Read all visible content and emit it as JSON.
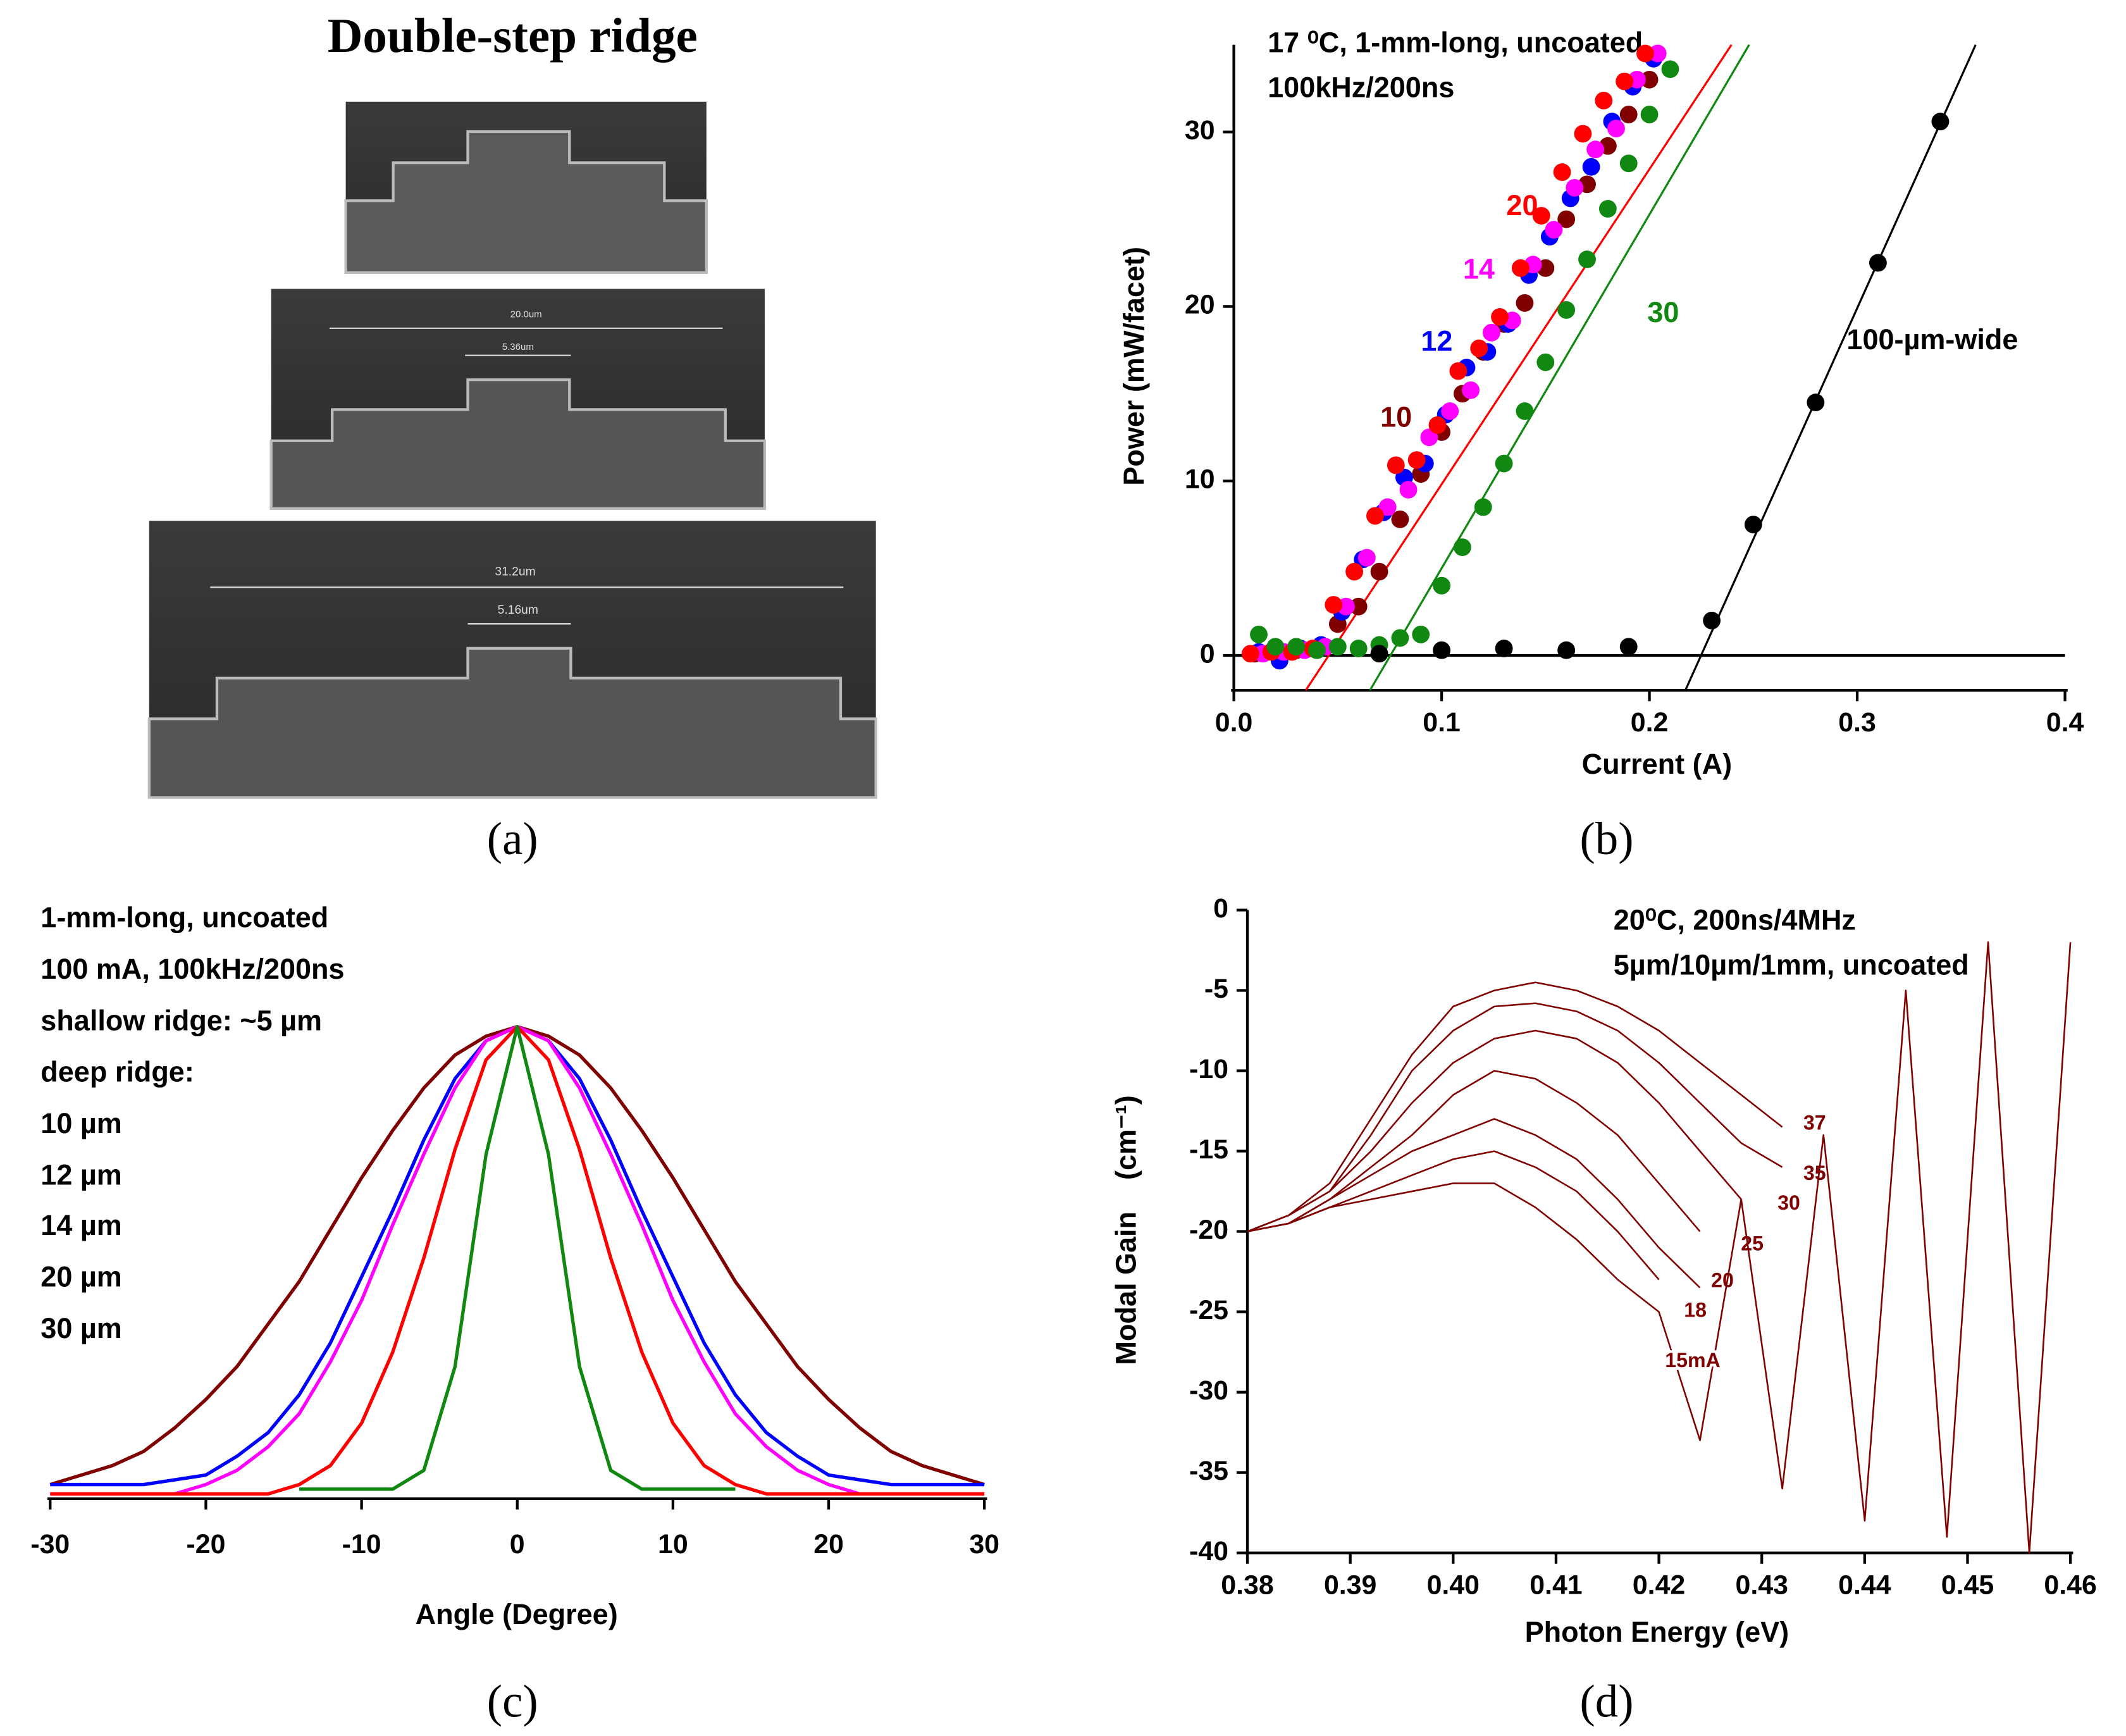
{
  "panel_a": {
    "title": "Double-step ridge",
    "measurements": [
      "20.0um",
      "5.36um",
      "31.2um",
      "5.16um"
    ]
  },
  "captions": [
    "(a)",
    "(b)",
    "(c)",
    "(d)"
  ],
  "chart_data": [
    {
      "type": "scatter",
      "xlabel": "Current (A)",
      "ylabel": "Power (mW/facet)",
      "annotations": [
        "17 ⁰C, 1-mm-long, uncoated,",
        "100kHz/200ns"
      ],
      "xlim": [
        0,
        0.4
      ],
      "ylim": [
        -2,
        35
      ],
      "xticks": [
        {
          "value": 0,
          "label": "0.0"
        },
        0.1,
        0.2,
        0.3,
        0.4
      ],
      "yticks": [
        0,
        10,
        20,
        30
      ],
      "series": [
        {
          "name": "10",
          "color": "#800000",
          "x": [
            0.01,
            0.02,
            0.03,
            0.04,
            0.05,
            0.06,
            0.07,
            0.08,
            0.09,
            0.1,
            0.11,
            0.12,
            0.13,
            0.14,
            0.15,
            0.16,
            0.17,
            0.18,
            0.19,
            0.2
          ],
          "values": [
            0.1,
            0.2,
            0.3,
            0.4,
            1.8,
            2.8,
            4.8,
            7.8,
            10.4,
            12.8,
            15,
            17.4,
            19,
            20.2,
            22.2,
            25,
            27,
            29.2,
            31,
            33
          ]
        },
        {
          "name": "12",
          "color": "#0000ff",
          "x": [
            0.012,
            0.022,
            0.032,
            0.042,
            0.052,
            0.062,
            0.072,
            0.082,
            0.092,
            0.102,
            0.112,
            0.122,
            0.132,
            0.142,
            0.152,
            0.162,
            0.172,
            0.182,
            0.192,
            0.202
          ],
          "values": [
            0.2,
            -0.3,
            0.4,
            0.6,
            2.5,
            5.5,
            8.2,
            10.2,
            11,
            13.8,
            16.5,
            17.4,
            19,
            21.8,
            24,
            26.2,
            28,
            30.6,
            32.6,
            34.2
          ]
        },
        {
          "name": "14",
          "color": "#ff00ff",
          "x": [
            0.014,
            0.024,
            0.034,
            0.044,
            0.054,
            0.064,
            0.074,
            0.084,
            0.094,
            0.104,
            0.114,
            0.124,
            0.134,
            0.144,
            0.154,
            0.164,
            0.174,
            0.184,
            0.194,
            0.204
          ],
          "values": [
            0.1,
            0.2,
            0.3,
            0.5,
            2.8,
            5.6,
            8.5,
            9.5,
            12.5,
            14,
            15.2,
            18.5,
            19.2,
            22.4,
            24.4,
            26.8,
            29,
            30.2,
            33,
            34.5
          ]
        },
        {
          "name": "20",
          "color": "#ff0000",
          "x": [
            0.008,
            0.018,
            0.028,
            0.038,
            0.048,
            0.058,
            0.068,
            0.078,
            0.088,
            0.098,
            0.108,
            0.118,
            0.128,
            0.138,
            0.148,
            0.158,
            0.168,
            0.178,
            0.188,
            0.198
          ],
          "values": [
            0.1,
            0.2,
            0.2,
            0.4,
            2.9,
            4.8,
            8,
            10.9,
            11.2,
            13.2,
            16.3,
            17.6,
            19.4,
            22.2,
            25.2,
            27.7,
            29.9,
            31.8,
            32.9,
            34.5
          ]
        },
        {
          "name": "30",
          "color": "#118811",
          "x": [
            0.012,
            0.02,
            0.03,
            0.04,
            0.05,
            0.06,
            0.07,
            0.08,
            0.09,
            0.1,
            0.11,
            0.12,
            0.13,
            0.14,
            0.15,
            0.16,
            0.17,
            0.18,
            0.19,
            0.2,
            0.21
          ],
          "values": [
            1.2,
            0.5,
            0.5,
            0.3,
            0.5,
            0.4,
            0.6,
            1,
            1.2,
            4,
            6.2,
            8.5,
            11,
            14,
            16.8,
            19.8,
            22.7,
            25.6,
            28.2,
            31,
            33.6
          ]
        },
        {
          "name": "100-µm-wide",
          "color": "#000000",
          "x": [
            0.07,
            0.1,
            0.13,
            0.16,
            0.19,
            0.23,
            0.25,
            0.28,
            0.31,
            0.34
          ],
          "values": [
            0.1,
            0.3,
            0.4,
            0.3,
            0.5,
            2,
            7.5,
            14.5,
            22.5,
            30.6
          ]
        }
      ],
      "fits": [
        {
          "color": "#ff0000",
          "x": [
            0.0346,
            0.2395
          ],
          "values": [
            -2,
            35
          ]
        },
        {
          "color": "#118811",
          "x": [
            0.0655,
            0.248
          ],
          "values": [
            -2,
            35
          ]
        },
        {
          "color": "#000000",
          "x": [
            0.2173,
            0.357
          ],
          "values": [
            -2,
            35
          ]
        }
      ]
    },
    {
      "type": "line",
      "xlabel": "Angle (Degree)",
      "annotations": [
        "1-mm-long, uncoated",
        "100 mA, 100kHz/200ns",
        "shallow ridge: ~5 µm",
        "deep ridge:"
      ],
      "xlim": [
        -30,
        30
      ],
      "ylim": [
        0,
        1
      ],
      "xticks": [
        -30,
        -20,
        -10,
        0,
        10,
        20,
        30
      ],
      "x": [
        -30,
        -28,
        -26,
        -24,
        -22,
        -20,
        -18,
        -16,
        -14,
        -12,
        -10,
        -8,
        -6,
        -4,
        -2,
        0,
        2,
        4,
        6,
        8,
        10,
        12,
        14,
        16,
        18,
        20,
        22,
        24,
        26,
        28,
        30
      ],
      "series": [
        {
          "name": "10 µm",
          "color": "#800000",
          "values": [
            0.03,
            0.05,
            0.07,
            0.1,
            0.15,
            0.21,
            0.28,
            0.37,
            0.46,
            0.57,
            0.68,
            0.78,
            0.87,
            0.94,
            0.98,
            1,
            0.98,
            0.94,
            0.87,
            0.78,
            0.68,
            0.57,
            0.46,
            0.37,
            0.28,
            0.21,
            0.15,
            0.1,
            0.07,
            0.05,
            0.03
          ]
        },
        {
          "name": "12 µm",
          "color": "#0000ff",
          "values": [
            0.03,
            0.03,
            0.03,
            0.03,
            0.04,
            0.05,
            0.09,
            0.14,
            0.22,
            0.33,
            0.47,
            0.61,
            0.76,
            0.89,
            0.97,
            1,
            0.97,
            0.89,
            0.76,
            0.61,
            0.47,
            0.33,
            0.22,
            0.14,
            0.09,
            0.05,
            0.04,
            0.03,
            0.03,
            0.03,
            0.03
          ]
        },
        {
          "name": "14 µm",
          "color": "#ff00ff",
          "values": [
            0.01,
            0.01,
            0.01,
            0.01,
            0.01,
            0.03,
            0.06,
            0.11,
            0.18,
            0.29,
            0.42,
            0.58,
            0.73,
            0.87,
            0.97,
            1,
            0.97,
            0.87,
            0.73,
            0.58,
            0.42,
            0.29,
            0.18,
            0.11,
            0.06,
            0.03,
            0.01,
            0.01,
            0.01,
            0.01,
            0.01
          ]
        },
        {
          "name": "20 µm",
          "color": "#ff0000",
          "values": [
            0.01,
            0.01,
            0.01,
            0.01,
            0.01,
            0.01,
            0.01,
            0.01,
            0.03,
            0.07,
            0.16,
            0.31,
            0.51,
            0.74,
            0.93,
            1,
            0.93,
            0.74,
            0.51,
            0.31,
            0.16,
            0.07,
            0.03,
            0.01,
            0.01,
            0.01,
            0.01,
            0.01,
            0.01,
            0.01,
            0.01
          ]
        },
        {
          "name": "30 µm",
          "color": "#118811",
          "values": [
            null,
            null,
            null,
            null,
            null,
            null,
            null,
            null,
            0.02,
            0.02,
            0.02,
            0.02,
            0.06,
            0.28,
            0.73,
            1,
            0.73,
            0.28,
            0.06,
            0.02,
            0.02,
            0.02,
            0.02,
            null,
            null,
            null,
            null,
            null,
            null,
            null,
            null
          ]
        }
      ]
    },
    {
      "type": "line",
      "xlabel": "Photon Energy (eV)",
      "ylabel": "Modal Gain    (cm⁻¹)",
      "annotations": [
        "20⁰C, 200ns/4MHz",
        "5µm/10µm/1mm, uncoated"
      ],
      "xlim": [
        0.38,
        0.46
      ],
      "ylim": [
        -40,
        0
      ],
      "xticks": [
        0.38,
        0.39,
        {
          "value": 0.4,
          "label": "0.40"
        },
        0.41,
        0.42,
        0.43,
        0.44,
        0.45,
        0.46
      ],
      "yticks": [
        -40,
        -35,
        -30,
        -25,
        -20,
        -15,
        -10,
        -5,
        0
      ],
      "x": [
        0.38,
        0.384,
        0.388,
        0.392,
        0.396,
        0.4,
        0.404,
        0.408,
        0.412,
        0.416,
        0.42,
        0.424,
        0.428,
        0.432,
        0.436,
        0.44,
        0.444,
        0.448,
        0.452,
        0.456,
        0.46
      ],
      "series": [
        {
          "name": "37",
          "color": "#800000",
          "values": [
            -20,
            -19,
            -17,
            -13,
            -9,
            -6,
            -5,
            -4.5,
            -5,
            -6,
            -7.5,
            -9.5,
            -11.5,
            -13.5,
            null,
            null,
            null,
            null,
            null,
            null,
            null
          ]
        },
        {
          "name": "35",
          "color": "#800000",
          "values": [
            -20,
            -19,
            -17.5,
            -14,
            -10,
            -7.5,
            -6,
            -5.8,
            -6.3,
            -7.5,
            -9.5,
            -12,
            -14.5,
            -16,
            null,
            null,
            null,
            null,
            null,
            null,
            null
          ]
        },
        {
          "name": "30",
          "color": "#800000",
          "values": [
            -20,
            -19,
            -17.5,
            -15,
            -12,
            -9.5,
            -8,
            -7.5,
            -8,
            -9.5,
            -12,
            -15,
            -18,
            null,
            null,
            null,
            null,
            null,
            null,
            null,
            null
          ]
        },
        {
          "name": "25",
          "color": "#800000",
          "values": [
            -20,
            -19.5,
            -18,
            -16,
            -14,
            -11.5,
            -10,
            -10.5,
            -12,
            -14,
            -17,
            -20,
            null,
            null,
            null,
            null,
            null,
            null,
            null,
            null,
            null
          ]
        },
        {
          "name": "20",
          "color": "#800000",
          "values": [
            -20,
            -19.5,
            -18,
            -16.5,
            -15,
            -14,
            -13,
            -14,
            -15.5,
            -18,
            -21,
            -23.5,
            null,
            null,
            null,
            null,
            null,
            null,
            null,
            null,
            null
          ]
        },
        {
          "name": "18",
          "color": "#800000",
          "values": [
            -20,
            -19.5,
            -18.5,
            -17.5,
            -16.5,
            -15.5,
            -15,
            -16,
            -17.5,
            -20,
            -23,
            null,
            null,
            null,
            null,
            null,
            null,
            null,
            null,
            null,
            null
          ]
        },
        {
          "name": "15mA",
          "color": "#800000",
          "values": [
            -20,
            -19.5,
            -18.5,
            -18,
            -17.5,
            -17,
            -17,
            -18.5,
            -20.5,
            -23,
            -25,
            -33,
            -18,
            -36,
            -14,
            -38,
            -5,
            -39,
            -2,
            -40,
            -2
          ]
        }
      ]
    }
  ]
}
